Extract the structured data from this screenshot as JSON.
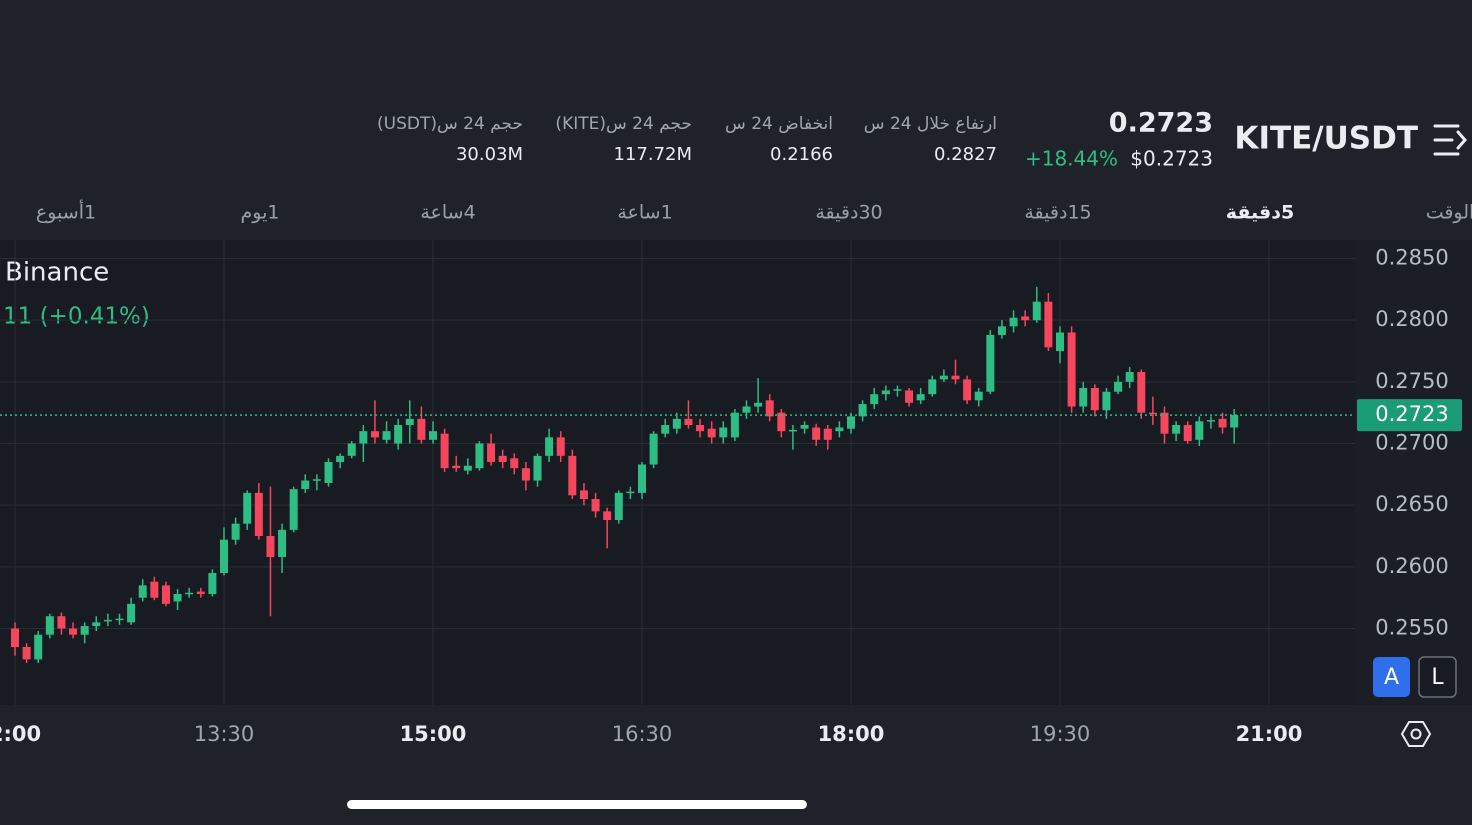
{
  "header": {
    "pair": "KITE/USDT",
    "price": "0.2723",
    "price_usd": "$0.2723",
    "change": "+18.44%",
    "stats": [
      {
        "label": "ارتفاع خلال 24 س",
        "value": "0.2827"
      },
      {
        "label": "انخفاض 24 س",
        "value": "0.2166"
      },
      {
        "label": "حجم 24 س(KITE)",
        "value": "117.72M"
      },
      {
        "label": "حجم 24 س(USDT)",
        "value": "30.03M"
      }
    ]
  },
  "intervals": {
    "items": [
      "الوقت",
      "5دقيقة",
      "15دقيقة",
      "30دقيقة",
      "1ساعة",
      "4ساعة",
      "1يوم",
      "1أسبوع"
    ],
    "selected": 1
  },
  "chart": {
    "type": "candlestick",
    "exchange": "Binance",
    "change_label": "11 (+0.41%)",
    "colors": {
      "up": "#2ebd85",
      "down": "#f6465d"
    },
    "ylim": [
      0.2488,
      0.2865
    ],
    "yticks": [
      {
        "value": 0.255,
        "label": "0.2550"
      },
      {
        "value": 0.26,
        "label": "0.2600"
      },
      {
        "value": 0.265,
        "label": "0.2650"
      },
      {
        "value": 0.27,
        "label": "0.2700"
      },
      {
        "value": 0.275,
        "label": "0.2750"
      },
      {
        "value": 0.28,
        "label": "0.2800"
      },
      {
        "value": 0.285,
        "label": "0.2850"
      }
    ],
    "xticks": [
      "2:00",
      "13:30",
      "15:00",
      "16:30",
      "18:00",
      "19:30",
      "21:00"
    ],
    "last_price": 0.2723,
    "candles": [
      [
        0.255,
        0.2555,
        0.2528,
        0.2535
      ],
      [
        0.2535,
        0.2538,
        0.2522,
        0.2525
      ],
      [
        0.2525,
        0.2548,
        0.2522,
        0.2545
      ],
      [
        0.2545,
        0.2562,
        0.2542,
        0.256
      ],
      [
        0.256,
        0.2563,
        0.2545,
        0.255
      ],
      [
        0.255,
        0.2555,
        0.2542,
        0.2545
      ],
      [
        0.2545,
        0.2555,
        0.2538,
        0.2552
      ],
      [
        0.2552,
        0.256,
        0.2548,
        0.2555
      ],
      [
        0.2556,
        0.2562,
        0.2552,
        0.2557
      ],
      [
        0.2557,
        0.2562,
        0.2553,
        0.2558
      ],
      [
        0.2555,
        0.2575,
        0.2553,
        0.257
      ],
      [
        0.2575,
        0.259,
        0.2572,
        0.2585
      ],
      [
        0.2588,
        0.2592,
        0.2573,
        0.2575
      ],
      [
        0.2585,
        0.2588,
        0.2568,
        0.257
      ],
      [
        0.2572,
        0.2582,
        0.2565,
        0.2578
      ],
      [
        0.2578,
        0.2583,
        0.2575,
        0.2579
      ],
      [
        0.258,
        0.2583,
        0.2575,
        0.2578
      ],
      [
        0.2578,
        0.2598,
        0.2576,
        0.2595
      ],
      [
        0.2595,
        0.2632,
        0.2593,
        0.2622
      ],
      [
        0.2622,
        0.264,
        0.2618,
        0.2635
      ],
      [
        0.2635,
        0.2662,
        0.263,
        0.266
      ],
      [
        0.266,
        0.2668,
        0.2622,
        0.2625
      ],
      [
        0.2625,
        0.2665,
        0.256,
        0.2608
      ],
      [
        0.2608,
        0.2635,
        0.2595,
        0.263
      ],
      [
        0.263,
        0.2665,
        0.2628,
        0.2663
      ],
      [
        0.2663,
        0.2675,
        0.266,
        0.267
      ],
      [
        0.267,
        0.2675,
        0.2662,
        0.2671
      ],
      [
        0.2668,
        0.2688,
        0.2665,
        0.2685
      ],
      [
        0.2685,
        0.2692,
        0.268,
        0.269
      ],
      [
        0.269,
        0.2702,
        0.2688,
        0.27
      ],
      [
        0.27,
        0.2715,
        0.2685,
        0.271
      ],
      [
        0.271,
        0.2735,
        0.27,
        0.2705
      ],
      [
        0.2703,
        0.2718,
        0.27,
        0.271
      ],
      [
        0.27,
        0.272,
        0.2695,
        0.2715
      ],
      [
        0.2715,
        0.2735,
        0.27,
        0.272
      ],
      [
        0.272,
        0.273,
        0.27,
        0.2703
      ],
      [
        0.2703,
        0.2718,
        0.27,
        0.271
      ],
      [
        0.2708,
        0.2712,
        0.2677,
        0.268
      ],
      [
        0.2682,
        0.269,
        0.2677,
        0.268
      ],
      [
        0.2678,
        0.2688,
        0.2675,
        0.2682
      ],
      [
        0.268,
        0.2702,
        0.2678,
        0.27
      ],
      [
        0.27,
        0.2708,
        0.2682,
        0.2685
      ],
      [
        0.269,
        0.2695,
        0.268,
        0.2685
      ],
      [
        0.2688,
        0.2692,
        0.2675,
        0.268
      ],
      [
        0.268,
        0.2685,
        0.2662,
        0.267
      ],
      [
        0.267,
        0.2692,
        0.2665,
        0.269
      ],
      [
        0.269,
        0.2712,
        0.2685,
        0.2705
      ],
      [
        0.2705,
        0.271,
        0.2685,
        0.269
      ],
      [
        0.269,
        0.2695,
        0.2655,
        0.2658
      ],
      [
        0.2662,
        0.2668,
        0.265,
        0.2655
      ],
      [
        0.2655,
        0.266,
        0.264,
        0.2645
      ],
      [
        0.2645,
        0.2648,
        0.2615,
        0.2638
      ],
      [
        0.2638,
        0.2662,
        0.2635,
        0.266
      ],
      [
        0.266,
        0.2665,
        0.2655,
        0.2661
      ],
      [
        0.266,
        0.2685,
        0.2655,
        0.2683
      ],
      [
        0.2683,
        0.271,
        0.268,
        0.2708
      ],
      [
        0.2708,
        0.272,
        0.2705,
        0.2715
      ],
      [
        0.2712,
        0.2725,
        0.2708,
        0.272
      ],
      [
        0.272,
        0.2735,
        0.2712,
        0.2715
      ],
      [
        0.2715,
        0.272,
        0.2705,
        0.271
      ],
      [
        0.2712,
        0.2718,
        0.27,
        0.2705
      ],
      [
        0.2705,
        0.2718,
        0.27,
        0.2713
      ],
      [
        0.2705,
        0.2728,
        0.2702,
        0.2725
      ],
      [
        0.2725,
        0.2735,
        0.272,
        0.273
      ],
      [
        0.273,
        0.2753,
        0.2725,
        0.2733
      ],
      [
        0.2735,
        0.274,
        0.2718,
        0.2722
      ],
      [
        0.2725,
        0.2728,
        0.2705,
        0.271
      ],
      [
        0.271,
        0.2715,
        0.2695,
        0.2711
      ],
      [
        0.2712,
        0.2718,
        0.2708,
        0.2715
      ],
      [
        0.2713,
        0.2716,
        0.2698,
        0.2703
      ],
      [
        0.2712,
        0.2715,
        0.2695,
        0.2703
      ],
      [
        0.271,
        0.2718,
        0.2705,
        0.2713
      ],
      [
        0.2712,
        0.2725,
        0.2708,
        0.2722
      ],
      [
        0.2722,
        0.2735,
        0.2718,
        0.2732
      ],
      [
        0.2732,
        0.2745,
        0.2728,
        0.274
      ],
      [
        0.274,
        0.2747,
        0.2735,
        0.2743
      ],
      [
        0.2743,
        0.2747,
        0.2738,
        0.2744
      ],
      [
        0.2743,
        0.2745,
        0.273,
        0.2733
      ],
      [
        0.2735,
        0.2745,
        0.2732,
        0.274
      ],
      [
        0.274,
        0.2755,
        0.2738,
        0.2752
      ],
      [
        0.2752,
        0.276,
        0.275,
        0.2755
      ],
      [
        0.2755,
        0.2768,
        0.2748,
        0.2752
      ],
      [
        0.2752,
        0.2755,
        0.2732,
        0.2735
      ],
      [
        0.2735,
        0.2745,
        0.273,
        0.2742
      ],
      [
        0.2742,
        0.2792,
        0.274,
        0.2788
      ],
      [
        0.2788,
        0.28,
        0.2785,
        0.2795
      ],
      [
        0.2795,
        0.2808,
        0.279,
        0.2802
      ],
      [
        0.2803,
        0.2808,
        0.2795,
        0.28
      ],
      [
        0.28,
        0.2827,
        0.2798,
        0.2815
      ],
      [
        0.2815,
        0.2822,
        0.2775,
        0.2778
      ],
      [
        0.2775,
        0.2795,
        0.2765,
        0.279
      ],
      [
        0.279,
        0.2795,
        0.2725,
        0.273
      ],
      [
        0.273,
        0.275,
        0.2725,
        0.2745
      ],
      [
        0.2745,
        0.2748,
        0.2722,
        0.2727
      ],
      [
        0.2727,
        0.2745,
        0.272,
        0.2742
      ],
      [
        0.2742,
        0.2755,
        0.274,
        0.275
      ],
      [
        0.275,
        0.2762,
        0.2745,
        0.2758
      ],
      [
        0.2758,
        0.276,
        0.272,
        0.2725
      ],
      [
        0.2725,
        0.2738,
        0.2715,
        0.2724
      ],
      [
        0.2725,
        0.273,
        0.27,
        0.2708
      ],
      [
        0.2708,
        0.2718,
        0.2702,
        0.2715
      ],
      [
        0.2715,
        0.2718,
        0.27,
        0.2702
      ],
      [
        0.2703,
        0.2722,
        0.2698,
        0.2718
      ],
      [
        0.2718,
        0.2722,
        0.2712,
        0.2719
      ],
      [
        0.272,
        0.2725,
        0.2708,
        0.2713
      ],
      [
        0.2713,
        0.2728,
        0.27,
        0.2723
      ]
    ]
  },
  "buttons": [
    "A",
    "L"
  ]
}
